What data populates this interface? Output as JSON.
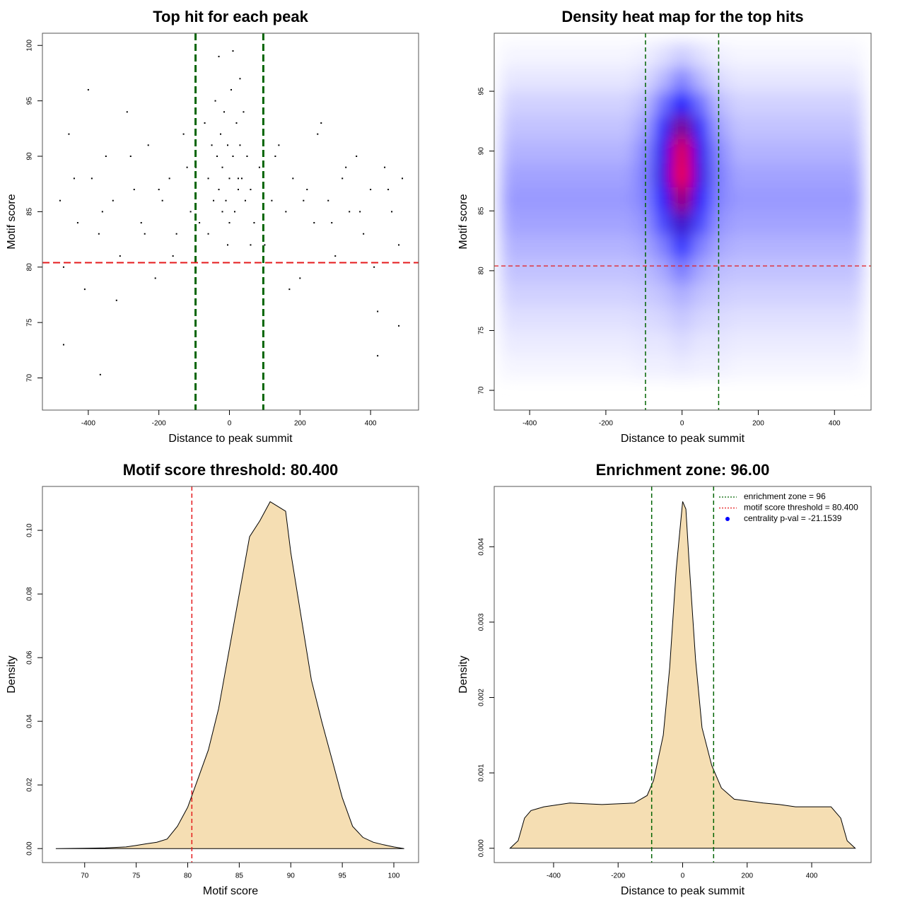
{
  "chart_data": [
    {
      "type": "scatter",
      "title": "Top hit for each peak",
      "xlabel": "Distance to peak summit",
      "ylabel": "Motif score",
      "xlim": [
        -530,
        536
      ],
      "ylim": [
        67.1,
        101.1
      ],
      "xticks": [
        -400,
        -200,
        0,
        200,
        400
      ],
      "yticks": [
        70,
        75,
        80,
        85,
        90,
        95,
        100
      ],
      "color": "#000000",
      "x": [
        -480,
        -455,
        -430,
        -410,
        -390,
        -370,
        -350,
        -330,
        -310,
        -290,
        -270,
        -250,
        -230,
        -210,
        -190,
        -170,
        -150,
        -130,
        -110,
        -95,
        -85,
        -70,
        -60,
        -50,
        -45,
        -40,
        -35,
        -30,
        -25,
        -20,
        -15,
        -10,
        -5,
        0,
        5,
        10,
        15,
        20,
        25,
        30,
        35,
        40,
        45,
        50,
        60,
        70,
        85,
        100,
        120,
        140,
        160,
        180,
        200,
        220,
        240,
        260,
        280,
        300,
        320,
        340,
        360,
        380,
        400,
        420,
        440,
        460,
        480,
        490,
        -470,
        -440,
        -400,
        -360,
        -320,
        -280,
        -240,
        -200,
        -160,
        -120,
        -60,
        -30,
        0,
        30,
        60,
        130,
        170,
        210,
        250,
        290,
        330,
        370,
        410,
        450,
        -366,
        -470,
        420,
        480,
        -20,
        10,
        -5,
        25
      ],
      "y": [
        86,
        92,
        84,
        78,
        88,
        83,
        90,
        86,
        81,
        94,
        87,
        84,
        91,
        79,
        86,
        88,
        83,
        92,
        85,
        89,
        84,
        93,
        88,
        91,
        86,
        95,
        90,
        87,
        92,
        89,
        94,
        86,
        91,
        88,
        96,
        90,
        85,
        93,
        87,
        91,
        88,
        94,
        86,
        90,
        87,
        84,
        89,
        82,
        86,
        91,
        85,
        88,
        79,
        87,
        84,
        93,
        86,
        81,
        88,
        85,
        90,
        83,
        87,
        76,
        89,
        85,
        82,
        88,
        80,
        88,
        96,
        85,
        77,
        90,
        83,
        87,
        81,
        89,
        83,
        99,
        84,
        97,
        82,
        90,
        78,
        86,
        92,
        84,
        89,
        85,
        80,
        87,
        70.3,
        73,
        72,
        74.7,
        85,
        99.5,
        82,
        88
      ],
      "vlines": [
        -96,
        96
      ],
      "vline_color": "#006400",
      "hlines": [
        80.4
      ],
      "hline_color": "#e41a1c"
    },
    {
      "type": "heatmap",
      "title": "Density heat map for the top hits",
      "xlabel": "Distance to peak summit",
      "ylabel": "Motif score",
      "xlim": [
        -493,
        496
      ],
      "ylim": [
        68.35,
        99.85
      ],
      "xticks": [
        -400,
        -200,
        0,
        200,
        400
      ],
      "yticks": [
        70,
        75,
        80,
        85,
        90,
        95
      ],
      "x": [
        -450,
        -400,
        -350,
        -300,
        -250,
        -200,
        -150,
        -100,
        -50,
        0,
        50,
        100,
        150,
        200,
        250,
        300,
        350,
        400,
        450
      ],
      "y": [
        72,
        74,
        76,
        78,
        80,
        82,
        84,
        86,
        88,
        90,
        92,
        94,
        96,
        98
      ],
      "z": [
        [
          0.02,
          0.02,
          0.02,
          0.02,
          0.02,
          0.02,
          0.02,
          0.03,
          0.03,
          0.04,
          0.03,
          0.03,
          0.02,
          0.02,
          0.02,
          0.02,
          0.02,
          0.02,
          0.02
        ],
        [
          0.04,
          0.04,
          0.04,
          0.04,
          0.04,
          0.04,
          0.04,
          0.05,
          0.05,
          0.07,
          0.05,
          0.05,
          0.04,
          0.04,
          0.04,
          0.04,
          0.04,
          0.04,
          0.04
        ],
        [
          0.06,
          0.06,
          0.06,
          0.06,
          0.06,
          0.06,
          0.06,
          0.07,
          0.08,
          0.11,
          0.08,
          0.07,
          0.06,
          0.06,
          0.06,
          0.06,
          0.06,
          0.06,
          0.06
        ],
        [
          0.09,
          0.09,
          0.09,
          0.09,
          0.09,
          0.09,
          0.09,
          0.1,
          0.12,
          0.16,
          0.12,
          0.1,
          0.09,
          0.09,
          0.09,
          0.09,
          0.09,
          0.09,
          0.09
        ],
        [
          0.12,
          0.12,
          0.12,
          0.12,
          0.12,
          0.12,
          0.12,
          0.13,
          0.17,
          0.26,
          0.17,
          0.13,
          0.12,
          0.12,
          0.12,
          0.12,
          0.12,
          0.12,
          0.12
        ],
        [
          0.15,
          0.15,
          0.15,
          0.15,
          0.15,
          0.15,
          0.15,
          0.17,
          0.25,
          0.42,
          0.25,
          0.17,
          0.15,
          0.15,
          0.15,
          0.15,
          0.15,
          0.15,
          0.15
        ],
        [
          0.18,
          0.18,
          0.18,
          0.18,
          0.18,
          0.18,
          0.18,
          0.21,
          0.36,
          0.62,
          0.36,
          0.21,
          0.18,
          0.18,
          0.18,
          0.18,
          0.18,
          0.18,
          0.18
        ],
        [
          0.2,
          0.2,
          0.2,
          0.2,
          0.2,
          0.2,
          0.2,
          0.24,
          0.46,
          0.82,
          0.46,
          0.24,
          0.2,
          0.2,
          0.2,
          0.2,
          0.2,
          0.2,
          0.2
        ],
        [
          0.18,
          0.18,
          0.18,
          0.18,
          0.18,
          0.18,
          0.18,
          0.25,
          0.55,
          0.98,
          0.55,
          0.25,
          0.18,
          0.18,
          0.18,
          0.18,
          0.18,
          0.18,
          0.18
        ],
        [
          0.15,
          0.15,
          0.15,
          0.15,
          0.15,
          0.15,
          0.15,
          0.23,
          0.53,
          0.95,
          0.53,
          0.23,
          0.15,
          0.15,
          0.15,
          0.15,
          0.15,
          0.15,
          0.15
        ],
        [
          0.12,
          0.12,
          0.12,
          0.12,
          0.12,
          0.12,
          0.12,
          0.18,
          0.42,
          0.75,
          0.42,
          0.18,
          0.12,
          0.12,
          0.12,
          0.12,
          0.12,
          0.12,
          0.12
        ],
        [
          0.09,
          0.09,
          0.09,
          0.09,
          0.09,
          0.09,
          0.09,
          0.13,
          0.28,
          0.5,
          0.28,
          0.13,
          0.09,
          0.09,
          0.09,
          0.09,
          0.09,
          0.09,
          0.09
        ],
        [
          0.05,
          0.05,
          0.05,
          0.05,
          0.05,
          0.05,
          0.05,
          0.07,
          0.14,
          0.25,
          0.14,
          0.07,
          0.05,
          0.05,
          0.05,
          0.05,
          0.05,
          0.05,
          0.05
        ],
        [
          0.02,
          0.02,
          0.02,
          0.02,
          0.02,
          0.02,
          0.02,
          0.03,
          0.06,
          0.1,
          0.06,
          0.03,
          0.02,
          0.02,
          0.02,
          0.02,
          0.02,
          0.02,
          0.02
        ]
      ],
      "colors": [
        "#ffffff",
        "#0000ff",
        "#ff0000"
      ],
      "vlines": [
        -96,
        96
      ],
      "vline_color": "#006400",
      "hlines": [
        80.4
      ],
      "hline_color": "#e41a1c"
    },
    {
      "type": "area",
      "title": "Motif score threshold: 80.400",
      "xlabel": "Motif score",
      "ylabel": "Density",
      "xlim": [
        65.9,
        102.4
      ],
      "ylim": [
        -0.0044,
        0.1138
      ],
      "xticks": [
        70,
        75,
        80,
        85,
        90,
        95,
        100
      ],
      "yticks": [
        {
          "value": 0,
          "label": "0.00"
        },
        0.02,
        0.04,
        0.06,
        0.08,
        {
          "value": 0.1,
          "label": "0.10"
        }
      ],
      "color": "#f5deb3",
      "x": [
        67.2,
        70,
        72,
        74,
        75,
        76,
        77,
        78,
        79,
        80,
        81,
        82,
        83,
        84,
        85,
        86,
        87,
        88,
        88.5,
        89,
        89.5,
        90,
        91,
        92,
        93,
        94,
        95,
        96,
        97,
        98,
        99,
        100,
        101
      ],
      "values": [
        0,
        0.0001,
        0.0002,
        0.0005,
        0.001,
        0.0015,
        0.002,
        0.003,
        0.007,
        0.013,
        0.022,
        0.031,
        0.044,
        0.062,
        0.08,
        0.098,
        0.103,
        0.109,
        0.108,
        0.107,
        0.106,
        0.093,
        0.073,
        0.053,
        0.04,
        0.028,
        0.016,
        0.007,
        0.0035,
        0.002,
        0.0012,
        0.0005,
        0
      ],
      "vlines": [
        80.4
      ],
      "vline_color": "#e41a1c"
    },
    {
      "type": "area",
      "title": "Enrichment zone: 96.00",
      "xlabel": "Distance to peak summit",
      "ylabel": "Density",
      "xlim": [
        -584,
        584
      ],
      "ylim": [
        -0.00019,
        0.0048
      ],
      "xticks": [
        -400,
        -200,
        0,
        200,
        400
      ],
      "yticks": [
        {
          "value": 0,
          "label": "0.000"
        },
        0.001,
        0.002,
        0.003,
        0.004
      ],
      "color": "#f5deb3",
      "x": [
        -535,
        -510,
        -490,
        -470,
        -430,
        -350,
        -250,
        -150,
        -110,
        -90,
        -60,
        -40,
        -20,
        0,
        10,
        20,
        40,
        60,
        90,
        120,
        160,
        250,
        300,
        350,
        400,
        460,
        490,
        510,
        535
      ],
      "values": [
        0,
        0.0001,
        0.0004,
        0.0005,
        0.00055,
        0.0006,
        0.00058,
        0.0006,
        0.0007,
        0.0009,
        0.0015,
        0.0024,
        0.0037,
        0.0046,
        0.0045,
        0.0038,
        0.0025,
        0.0016,
        0.0011,
        0.0008,
        0.00065,
        0.0006,
        0.00058,
        0.00055,
        0.00055,
        0.00055,
        0.0004,
        0.0001,
        0
      ],
      "vlines": [
        -96,
        96
      ],
      "vline_color": "#006400",
      "legend_position": "topright",
      "legend": [
        {
          "label": "enrichment zone = 96",
          "color": "#006400",
          "style": "dotted"
        },
        {
          "label": "motif score threshold = 80.400",
          "color": "#e41a1c",
          "style": "dotted"
        },
        {
          "label": "centrality p-val = -21.1539",
          "color": "#0000ff",
          "style": "point"
        }
      ]
    }
  ]
}
